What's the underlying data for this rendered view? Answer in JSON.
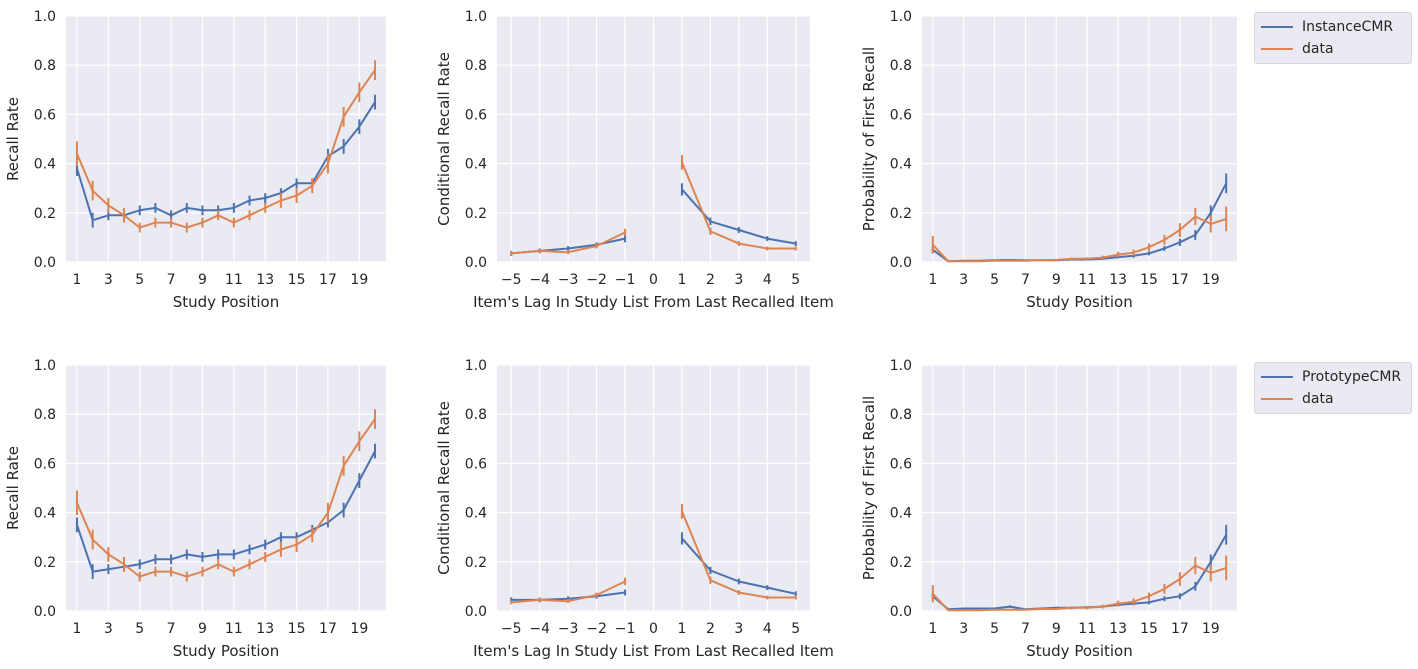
{
  "chart_data": [
    {
      "type": "line",
      "xlabel": "Study Position",
      "ylabel": "Recall Rate",
      "ylim": [
        0,
        1.0
      ],
      "yticks": [
        "0.0",
        "0.2",
        "0.4",
        "0.6",
        "0.8",
        "1.0"
      ],
      "xticks": [
        1,
        3,
        5,
        7,
        9,
        11,
        13,
        15,
        17,
        19
      ],
      "grid": true,
      "series": [
        {
          "name": "InstanceCMR",
          "color": "#4c72b0",
          "x": [
            1,
            2,
            3,
            4,
            5,
            6,
            7,
            8,
            9,
            10,
            11,
            12,
            13,
            14,
            15,
            16,
            17,
            18,
            19,
            20
          ],
          "values": [
            0.38,
            0.17,
            0.19,
            0.19,
            0.21,
            0.22,
            0.19,
            0.22,
            0.21,
            0.21,
            0.22,
            0.25,
            0.26,
            0.28,
            0.32,
            0.32,
            0.43,
            0.47,
            0.55,
            0.65
          ],
          "err": [
            0.03,
            0.03,
            0.02,
            0.02,
            0.02,
            0.02,
            0.02,
            0.02,
            0.02,
            0.02,
            0.02,
            0.02,
            0.02,
            0.02,
            0.02,
            0.02,
            0.03,
            0.03,
            0.03,
            0.03
          ]
        },
        {
          "name": "data",
          "color": "#dd8452",
          "x": [
            1,
            2,
            3,
            4,
            5,
            6,
            7,
            8,
            9,
            10,
            11,
            12,
            13,
            14,
            15,
            16,
            17,
            18,
            19,
            20
          ],
          "values": [
            0.44,
            0.29,
            0.23,
            0.19,
            0.14,
            0.16,
            0.16,
            0.14,
            0.16,
            0.19,
            0.16,
            0.19,
            0.22,
            0.25,
            0.27,
            0.31,
            0.4,
            0.59,
            0.69,
            0.78
          ],
          "err": [
            0.05,
            0.04,
            0.03,
            0.03,
            0.02,
            0.02,
            0.02,
            0.02,
            0.02,
            0.02,
            0.02,
            0.02,
            0.02,
            0.03,
            0.03,
            0.03,
            0.04,
            0.04,
            0.04,
            0.04
          ]
        }
      ]
    },
    {
      "type": "line",
      "xlabel": "Item's Lag In Study List From Last Recalled Item",
      "ylabel": "Conditional Recall Rate",
      "ylim": [
        0,
        1.0
      ],
      "yticks": [
        "0.0",
        "0.2",
        "0.4",
        "0.6",
        "0.8",
        "1.0"
      ],
      "xticks": [
        -5,
        -4,
        -3,
        -2,
        -1,
        0,
        1,
        2,
        3,
        4,
        5
      ],
      "xtick_labels": [
        "−5",
        "−4",
        "−3",
        "−2",
        "−1",
        "0",
        "1",
        "2",
        "3",
        "4",
        "5"
      ],
      "grid": true,
      "series": [
        {
          "name": "InstanceCMR",
          "color": "#4c72b0",
          "x": [
            -5,
            -4,
            -3,
            -2,
            -1,
            1,
            2,
            3,
            4,
            5
          ],
          "values": [
            0.035,
            0.045,
            0.055,
            0.07,
            0.095,
            0.295,
            0.165,
            0.13,
            0.095,
            0.075
          ],
          "err": [
            0.01,
            0.01,
            0.01,
            0.01,
            0.015,
            0.025,
            0.015,
            0.012,
            0.01,
            0.01
          ]
        },
        {
          "name": "data",
          "color": "#dd8452",
          "x": [
            -5,
            -4,
            -3,
            -2,
            -1,
            1,
            2,
            3,
            4,
            5
          ],
          "values": [
            0.035,
            0.045,
            0.04,
            0.065,
            0.12,
            0.405,
            0.125,
            0.075,
            0.055,
            0.055
          ],
          "err": [
            0.008,
            0.008,
            0.008,
            0.01,
            0.015,
            0.03,
            0.015,
            0.01,
            0.008,
            0.008
          ]
        }
      ]
    },
    {
      "type": "line",
      "xlabel": "Study Position",
      "ylabel": "Probability of First Recall",
      "ylim": [
        0,
        1.0
      ],
      "yticks": [
        "0.0",
        "0.2",
        "0.4",
        "0.6",
        "0.8",
        "1.0"
      ],
      "xticks": [
        1,
        3,
        5,
        7,
        9,
        11,
        13,
        15,
        17,
        19
      ],
      "grid": true,
      "legend": "outside-right",
      "series": [
        {
          "name": "InstanceCMR",
          "color": "#4c72b0",
          "x": [
            1,
            2,
            3,
            4,
            5,
            6,
            7,
            8,
            9,
            10,
            11,
            12,
            13,
            14,
            15,
            16,
            17,
            18,
            19,
            20
          ],
          "values": [
            0.05,
            0.003,
            0.005,
            0.005,
            0.007,
            0.008,
            0.007,
            0.007,
            0.007,
            0.01,
            0.01,
            0.013,
            0.02,
            0.025,
            0.035,
            0.055,
            0.08,
            0.11,
            0.2,
            0.32
          ],
          "err": [
            0.015,
            0.003,
            0.003,
            0.003,
            0.003,
            0.003,
            0.003,
            0.003,
            0.003,
            0.004,
            0.004,
            0.005,
            0.006,
            0.007,
            0.008,
            0.01,
            0.015,
            0.02,
            0.03,
            0.04
          ]
        },
        {
          "name": "data",
          "color": "#dd8452",
          "x": [
            1,
            2,
            3,
            4,
            5,
            6,
            7,
            8,
            9,
            10,
            11,
            12,
            13,
            14,
            15,
            16,
            17,
            18,
            19,
            20
          ],
          "values": [
            0.07,
            0.003,
            0.003,
            0.003,
            0.005,
            0.005,
            0.005,
            0.008,
            0.008,
            0.013,
            0.013,
            0.018,
            0.03,
            0.038,
            0.06,
            0.09,
            0.13,
            0.185,
            0.155,
            0.175
          ],
          "err": [
            0.035,
            0.003,
            0.003,
            0.003,
            0.003,
            0.003,
            0.003,
            0.004,
            0.004,
            0.006,
            0.006,
            0.008,
            0.012,
            0.013,
            0.015,
            0.02,
            0.028,
            0.035,
            0.035,
            0.05
          ]
        }
      ]
    },
    {
      "type": "line",
      "xlabel": "Study Position",
      "ylabel": "Recall Rate",
      "ylim": [
        0,
        1.0
      ],
      "yticks": [
        "0.0",
        "0.2",
        "0.4",
        "0.6",
        "0.8",
        "1.0"
      ],
      "xticks": [
        1,
        3,
        5,
        7,
        9,
        11,
        13,
        15,
        17,
        19
      ],
      "grid": true,
      "series": [
        {
          "name": "PrototypeCMR",
          "color": "#4c72b0",
          "x": [
            1,
            2,
            3,
            4,
            5,
            6,
            7,
            8,
            9,
            10,
            11,
            12,
            13,
            14,
            15,
            16,
            17,
            18,
            19,
            20
          ],
          "values": [
            0.35,
            0.16,
            0.17,
            0.18,
            0.19,
            0.21,
            0.21,
            0.23,
            0.22,
            0.23,
            0.23,
            0.25,
            0.27,
            0.3,
            0.3,
            0.33,
            0.36,
            0.41,
            0.53,
            0.65
          ],
          "err": [
            0.03,
            0.03,
            0.02,
            0.02,
            0.02,
            0.02,
            0.02,
            0.02,
            0.02,
            0.02,
            0.02,
            0.02,
            0.02,
            0.02,
            0.02,
            0.02,
            0.02,
            0.03,
            0.03,
            0.03
          ]
        },
        {
          "name": "data",
          "color": "#dd8452",
          "x": [
            1,
            2,
            3,
            4,
            5,
            6,
            7,
            8,
            9,
            10,
            11,
            12,
            13,
            14,
            15,
            16,
            17,
            18,
            19,
            20
          ],
          "values": [
            0.44,
            0.29,
            0.23,
            0.19,
            0.14,
            0.16,
            0.16,
            0.14,
            0.16,
            0.19,
            0.16,
            0.19,
            0.22,
            0.25,
            0.27,
            0.31,
            0.4,
            0.59,
            0.69,
            0.78
          ],
          "err": [
            0.05,
            0.04,
            0.03,
            0.03,
            0.02,
            0.02,
            0.02,
            0.02,
            0.02,
            0.02,
            0.02,
            0.02,
            0.02,
            0.03,
            0.03,
            0.03,
            0.04,
            0.04,
            0.04,
            0.04
          ]
        }
      ]
    },
    {
      "type": "line",
      "xlabel": "Item's Lag In Study List From Last Recalled Item",
      "ylabel": "Conditional Recall Rate",
      "ylim": [
        0,
        1.0
      ],
      "yticks": [
        "0.0",
        "0.2",
        "0.4",
        "0.6",
        "0.8",
        "1.0"
      ],
      "xticks": [
        -5,
        -4,
        -3,
        -2,
        -1,
        0,
        1,
        2,
        3,
        4,
        5
      ],
      "xtick_labels": [
        "−5",
        "−4",
        "−3",
        "−2",
        "−1",
        "0",
        "1",
        "2",
        "3",
        "4",
        "5"
      ],
      "grid": true,
      "series": [
        {
          "name": "PrototypeCMR",
          "color": "#4c72b0",
          "x": [
            -5,
            -4,
            -3,
            -2,
            -1,
            1,
            2,
            3,
            4,
            5
          ],
          "values": [
            0.045,
            0.045,
            0.05,
            0.06,
            0.075,
            0.295,
            0.165,
            0.12,
            0.095,
            0.07
          ],
          "err": [
            0.01,
            0.01,
            0.01,
            0.01,
            0.012,
            0.025,
            0.015,
            0.012,
            0.01,
            0.01
          ]
        },
        {
          "name": "data",
          "color": "#dd8452",
          "x": [
            -5,
            -4,
            -3,
            -2,
            -1,
            1,
            2,
            3,
            4,
            5
          ],
          "values": [
            0.035,
            0.045,
            0.04,
            0.065,
            0.12,
            0.405,
            0.125,
            0.075,
            0.055,
            0.055
          ],
          "err": [
            0.008,
            0.008,
            0.008,
            0.01,
            0.015,
            0.03,
            0.015,
            0.01,
            0.008,
            0.008
          ]
        }
      ]
    },
    {
      "type": "line",
      "xlabel": "Study Position",
      "ylabel": "Probability of First Recall",
      "ylim": [
        0,
        1.0
      ],
      "yticks": [
        "0.0",
        "0.2",
        "0.4",
        "0.6",
        "0.8",
        "1.0"
      ],
      "xticks": [
        1,
        3,
        5,
        7,
        9,
        11,
        13,
        15,
        17,
        19
      ],
      "grid": true,
      "legend": "outside-right",
      "series": [
        {
          "name": "PrototypeCMR",
          "color": "#4c72b0",
          "x": [
            1,
            2,
            3,
            4,
            5,
            6,
            7,
            8,
            9,
            10,
            11,
            12,
            13,
            14,
            15,
            16,
            17,
            18,
            19,
            20
          ],
          "values": [
            0.06,
            0.007,
            0.01,
            0.01,
            0.01,
            0.018,
            0.007,
            0.01,
            0.013,
            0.013,
            0.015,
            0.018,
            0.025,
            0.03,
            0.035,
            0.05,
            0.06,
            0.1,
            0.2,
            0.31
          ],
          "err": [
            0.015,
            0.003,
            0.003,
            0.003,
            0.003,
            0.005,
            0.003,
            0.003,
            0.004,
            0.004,
            0.004,
            0.005,
            0.006,
            0.007,
            0.008,
            0.01,
            0.012,
            0.018,
            0.03,
            0.04
          ]
        },
        {
          "name": "data",
          "color": "#dd8452",
          "x": [
            1,
            2,
            3,
            4,
            5,
            6,
            7,
            8,
            9,
            10,
            11,
            12,
            13,
            14,
            15,
            16,
            17,
            18,
            19,
            20
          ],
          "values": [
            0.07,
            0.003,
            0.003,
            0.003,
            0.005,
            0.005,
            0.005,
            0.008,
            0.008,
            0.013,
            0.013,
            0.018,
            0.03,
            0.038,
            0.06,
            0.09,
            0.13,
            0.185,
            0.155,
            0.175
          ],
          "err": [
            0.035,
            0.003,
            0.003,
            0.003,
            0.003,
            0.003,
            0.003,
            0.004,
            0.004,
            0.006,
            0.006,
            0.008,
            0.012,
            0.013,
            0.015,
            0.02,
            0.028,
            0.035,
            0.035,
            0.05
          ]
        }
      ]
    }
  ],
  "legends": [
    {
      "items": [
        {
          "label": "InstanceCMR",
          "color": "#4c72b0"
        },
        {
          "label": "data",
          "color": "#dd8452"
        }
      ]
    },
    {
      "items": [
        {
          "label": "PrototypeCMR",
          "color": "#4c72b0"
        },
        {
          "label": "data",
          "color": "#dd8452"
        }
      ]
    }
  ],
  "style": {
    "plot_background": "#eaeaf2",
    "grid_color": "#ffffff"
  }
}
